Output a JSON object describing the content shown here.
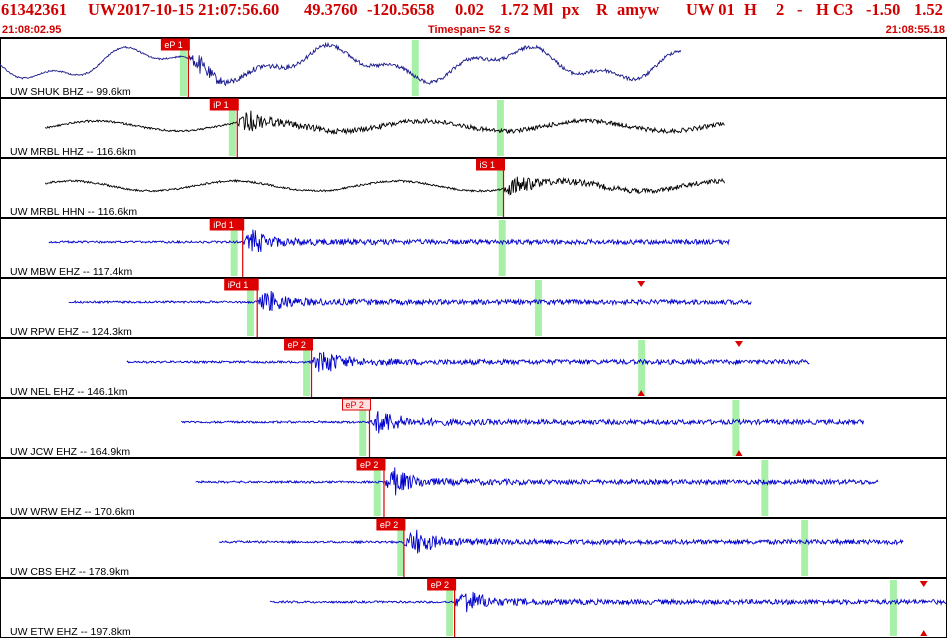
{
  "header": {
    "event_id": "61342361",
    "network": "UW",
    "origin": "2017-10-15 21:07:56.60",
    "lat": "49.3760",
    "lon": "-120.5658",
    "depth": "0.02",
    "magnitude": "1.72 Ml",
    "event_type": "px",
    "review": "R",
    "analyst": "amyw",
    "source": "UW 01",
    "h": "H",
    "gap": "2",
    "dash": "-",
    "quality": "H C3",
    "v1": "-1.50",
    "v2": "1.52"
  },
  "subheader": {
    "start_time": "21:08:02.95",
    "timespan": "Timespan=  52 s",
    "end_time": "21:08:55.18"
  },
  "colors": {
    "header_text": "#d00000",
    "pick_box": "#dd0000",
    "pick_box_hollow": "#ffe0e0",
    "pick_line": "#dd0000",
    "green_band": "#a8f0a8",
    "trace_hh": "#000000",
    "trace_eh": "#0000cc",
    "trace_bh": "#1a1a8c",
    "panel_border": "#000000",
    "marker": "#dd0000"
  },
  "chart_data": {
    "type": "line",
    "x_range_s": [
      0,
      52.23
    ],
    "channels": [
      {
        "label": "UW SHUK BHZ -- 99.6km",
        "color": "trace_bh",
        "trace_start_s": 0,
        "trace_end_s": 37.6,
        "pick": {
          "label": "eP 1",
          "time_s": 10.4,
          "hollow": false
        },
        "green_s": [
          10.1,
          22.9
        ],
        "markers": []
      },
      {
        "label": "UW MRBL HHZ -- 116.6km",
        "color": "trace_hh",
        "trace_start_s": 2.5,
        "trace_end_s": 40.0,
        "pick": {
          "label": "iP 1",
          "time_s": 13.1,
          "hollow": false
        },
        "green_s": [
          12.8,
          27.6
        ],
        "markers": []
      },
      {
        "label": "UW MRBL HHN -- 116.6km",
        "color": "trace_hh",
        "trace_start_s": 2.5,
        "trace_end_s": 40.0,
        "pick": {
          "label": "iS 1",
          "time_s": 27.8,
          "hollow": false
        },
        "green_s": [
          27.6
        ],
        "markers": []
      },
      {
        "label": "UW MBW EHZ -- 117.4km",
        "color": "trace_eh",
        "trace_start_s": 2.7,
        "trace_end_s": 40.3,
        "pick": {
          "label": "iPd 1",
          "time_s": 13.4,
          "hollow": false
        },
        "green_s": [
          12.9,
          27.7
        ],
        "markers": []
      },
      {
        "label": "UW RPW EHZ -- 124.3km",
        "color": "trace_eh",
        "trace_start_s": 3.8,
        "trace_end_s": 41.5,
        "pick": {
          "label": "iPd 1",
          "time_s": 14.2,
          "hollow": false
        },
        "green_s": [
          13.8,
          29.7
        ],
        "markers": [
          {
            "time_s": 35.4,
            "dir": "down"
          }
        ]
      },
      {
        "label": "UW NEL EHZ -- 146.1km",
        "color": "trace_eh",
        "trace_start_s": 7.0,
        "trace_end_s": 44.7,
        "pick": {
          "label": "eP 2",
          "time_s": 17.2,
          "hollow": false
        },
        "green_s": [
          16.9,
          35.4
        ],
        "markers": [
          {
            "time_s": 35.4,
            "dir": "up"
          },
          {
            "time_s": 40.8,
            "dir": "down"
          }
        ]
      },
      {
        "label": "UW JCW EHZ -- 164.9km",
        "color": "trace_eh",
        "trace_start_s": 10.0,
        "trace_end_s": 47.7,
        "pick": {
          "label": "eP 2",
          "time_s": 20.4,
          "hollow": true
        },
        "green_s": [
          20.0,
          40.6
        ],
        "markers": [
          {
            "time_s": 40.8,
            "dir": "up"
          }
        ]
      },
      {
        "label": "UW WRW EHZ -- 170.6km",
        "color": "trace_eh",
        "trace_start_s": 10.8,
        "trace_end_s": 48.5,
        "pick": {
          "label": "eP 2",
          "time_s": 21.2,
          "hollow": false
        },
        "green_s": [
          20.8,
          42.2
        ],
        "markers": []
      },
      {
        "label": "UW CBS EHZ -- 178.9km",
        "color": "trace_eh",
        "trace_start_s": 12.1,
        "trace_end_s": 49.9,
        "pick": {
          "label": "eP 2",
          "time_s": 22.3,
          "hollow": false
        },
        "green_s": [
          22.1,
          44.4
        ],
        "markers": []
      },
      {
        "label": "UW ETW EHZ -- 197.8km",
        "color": "trace_eh",
        "trace_start_s": 14.9,
        "trace_end_s": 52.23,
        "pick": {
          "label": "eP 2",
          "time_s": 25.1,
          "hollow": false
        },
        "green_s": [
          24.8,
          49.3
        ],
        "markers": [
          {
            "time_s": 51.0,
            "dir": "down"
          },
          {
            "time_s": 51.0,
            "dir": "up"
          }
        ]
      }
    ]
  }
}
